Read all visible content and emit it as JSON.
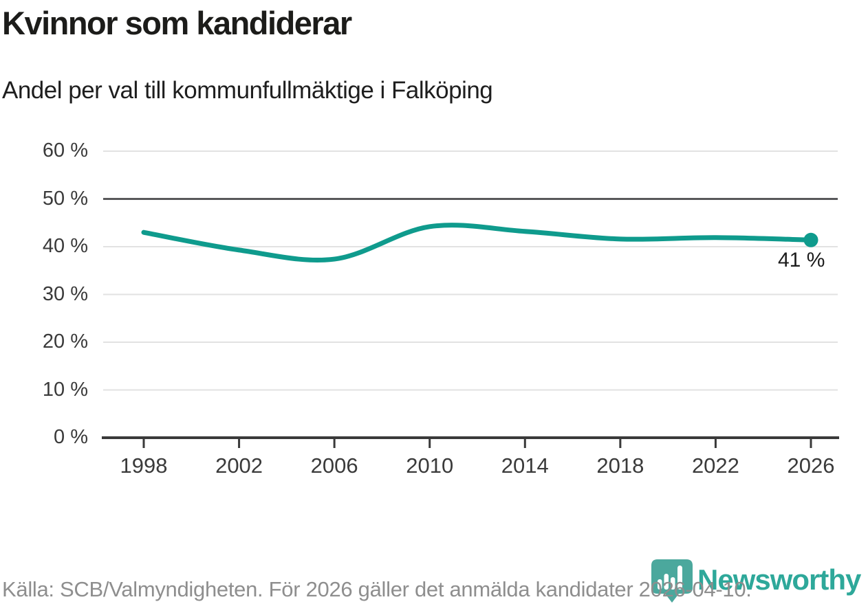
{
  "header": {
    "title": "Kvinnor som kandiderar",
    "subtitle": "Andel per val till kommunfullmäktige i Falköping"
  },
  "chart_data": {
    "type": "line",
    "title": "Kvinnor som kandiderar",
    "subtitle": "Andel per val till kommunfullmäktige i Falköping",
    "x": [
      1998,
      2002,
      2006,
      2010,
      2014,
      2018,
      2022,
      2026
    ],
    "xtick_labels": [
      "1998",
      "2002",
      "2006",
      "2010",
      "2014",
      "2018",
      "2022",
      "2026"
    ],
    "series": [
      {
        "name": "Andel kvinnor som kandiderar",
        "values": [
          43.0,
          39.3,
          37.4,
          44.2,
          43.2,
          41.6,
          41.9,
          41.4
        ]
      }
    ],
    "end_label": "41 %",
    "ylim": [
      0,
      60
    ],
    "yticks": [
      0,
      10,
      20,
      30,
      40,
      50,
      60
    ],
    "ytick_labels": [
      "0 %",
      "10 %",
      "20 %",
      "30 %",
      "40 %",
      "50 %",
      "60 %"
    ],
    "reference_line": 50,
    "grid": "horizontal",
    "legend": "none",
    "line_color": "#0f9b8d"
  },
  "footer": {
    "source_text": "Källa: SCB/Valmyndigheten. För 2026 gäller det anmälda kandidater 2026-04-10.",
    "brand": "Newsworthy"
  },
  "colors": {
    "accent_line": "#0f9b8d",
    "grid_light": "#e2e2e2",
    "grid_reference": "#58585a",
    "axis": "#3a3a3a",
    "text_dark": "#1c1c1a",
    "text_tick": "#3a3a3a",
    "text_footer": "#8e8e8e",
    "brand_pin": "#4ba89d",
    "brand_word": "#2ea89a"
  }
}
